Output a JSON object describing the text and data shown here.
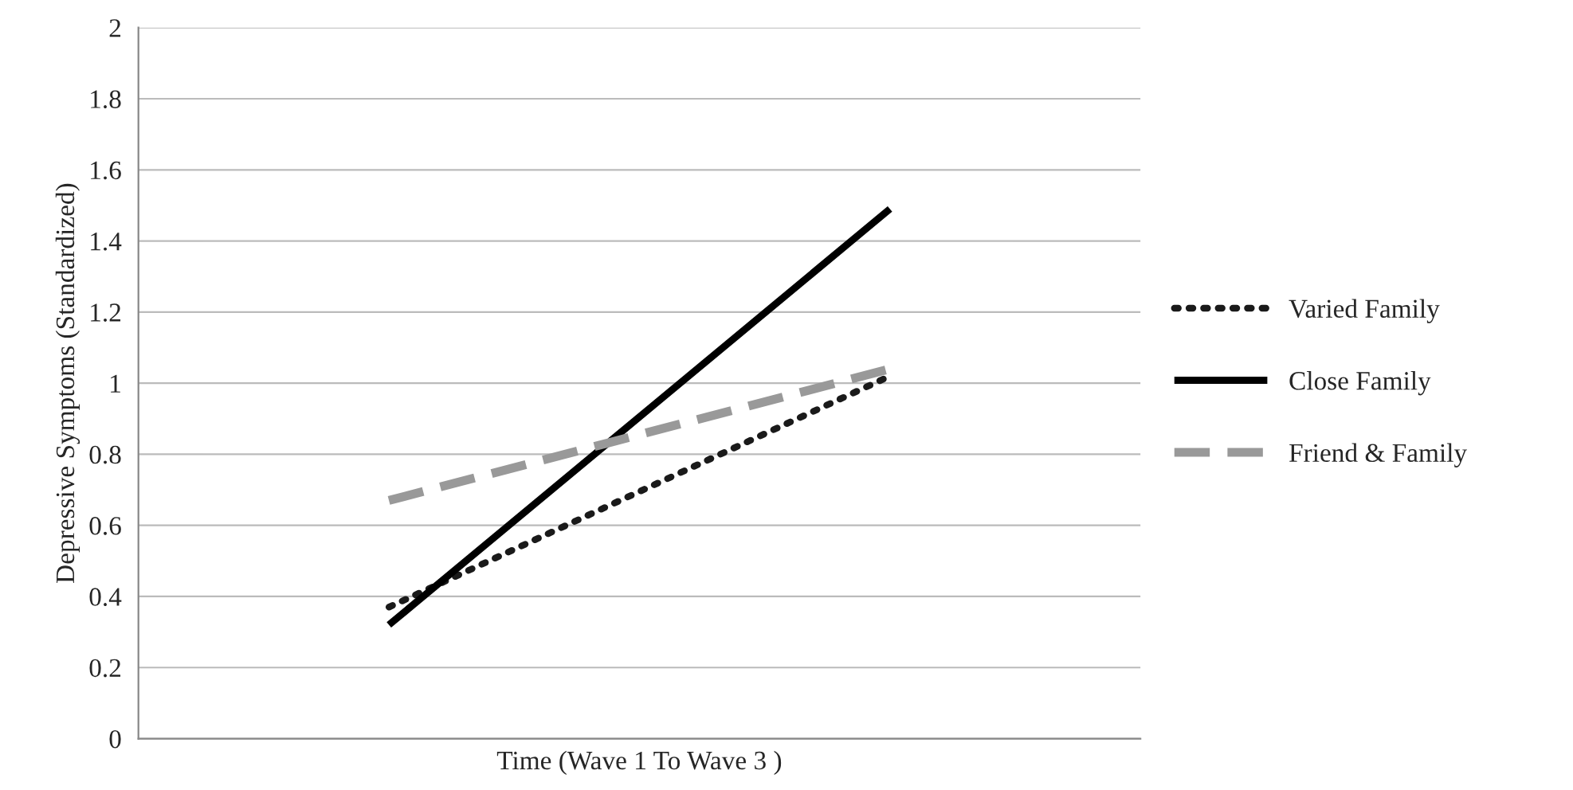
{
  "chart_data": {
    "type": "line",
    "xlabel": "Time (Wave 1 To Wave 3 )",
    "ylabel": "Depressive Symptoms (Standardized)",
    "categories": [
      null,
      null
    ],
    "series": [
      {
        "name": "Varied Family",
        "color": "#1a1a1a",
        "line_style": "dotted",
        "values": [
          0.37,
          1.02
        ]
      },
      {
        "name": "Close Family",
        "color": "#000000",
        "line_style": "solid",
        "values": [
          0.32,
          1.49
        ]
      },
      {
        "name": "Friend & Family",
        "color": "#999999",
        "line_style": "dashed",
        "values": [
          0.67,
          1.04
        ]
      }
    ],
    "ylim": [
      0,
      2
    ],
    "yticks": [
      0,
      0.2,
      0.4,
      0.6,
      0.8,
      1,
      1.2,
      1.4,
      1.6,
      1.8,
      2
    ],
    "grid": "y",
    "legend": "right"
  }
}
